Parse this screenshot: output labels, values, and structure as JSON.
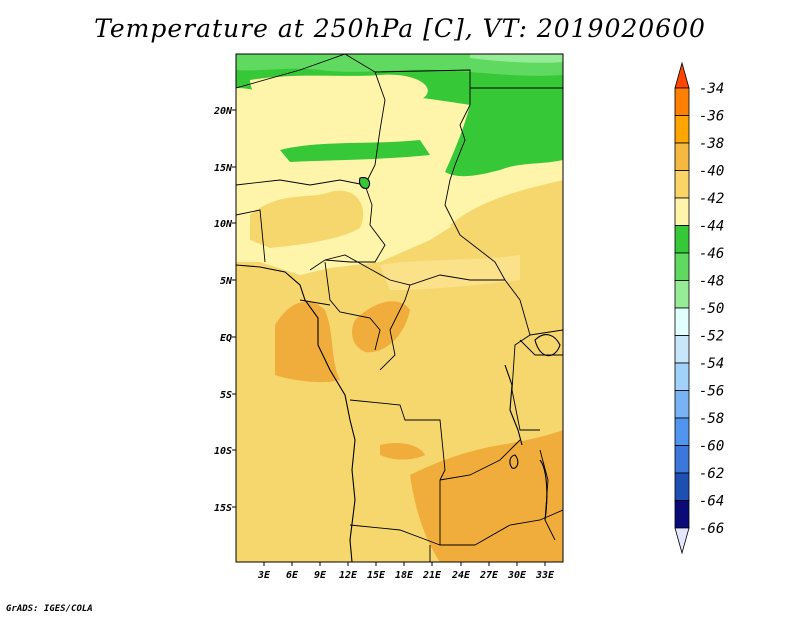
{
  "title": "Temperature at 250hPa [C], VT: 2019020600",
  "credit": "GrADS: IGES/COLA",
  "map": {
    "lat_ticks": [
      "20N",
      "15N",
      "10N",
      "5N",
      "EQ",
      "5S",
      "10S",
      "15S"
    ],
    "lon_ticks": [
      "3E",
      "6E",
      "9E",
      "12E",
      "15E",
      "18E",
      "21E",
      "24E",
      "27E",
      "30E",
      "33E"
    ]
  },
  "colorbar": {
    "labels": [
      "-34",
      "-36",
      "-38",
      "-40",
      "-42",
      "-44",
      "-46",
      "-48",
      "-50",
      "-52",
      "-54",
      "-56",
      "-58",
      "-60",
      "-62",
      "-64",
      "-66"
    ],
    "colors": [
      "#ff4500",
      "#ff7f00",
      "#ffa500",
      "#f5b942",
      "#fad466",
      "#fff5aa",
      "#37c837",
      "#5fd95f",
      "#96eb96",
      "#e1ffff",
      "#c8e6fa",
      "#a0d2fa",
      "#78b4f5",
      "#5096f0",
      "#3c78dc",
      "#1e50b4",
      "#0a0a78",
      "#e6e6ff"
    ]
  }
}
